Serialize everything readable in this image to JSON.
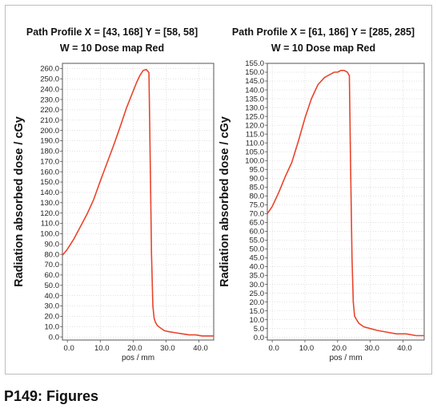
{
  "caption": "P149: Figures",
  "colors": {
    "line": "#e8452c",
    "grid": "#cfcfcf",
    "axis": "#555555",
    "frame": "#bdbdbd"
  },
  "chart_data": [
    {
      "type": "line",
      "title_line1": "Path Profile X = [43, 168]  Y = [58, 58]",
      "title_line2": "W = 10 Dose map Red",
      "xlabel": "pos / mm",
      "ylabel": "Radiation absorbed dose / cGy",
      "xlim": [
        -1.5,
        44.5
      ],
      "ylim": [
        -3,
        265
      ],
      "x_ticks": [
        0,
        10,
        20,
        30,
        40
      ],
      "x_tick_labels": [
        "0.0",
        "10.0",
        "20.0",
        "30.0",
        "40.0"
      ],
      "y_ticks": [
        0,
        10,
        20,
        30,
        40,
        50,
        60,
        70,
        80,
        90,
        100,
        110,
        120,
        130,
        140,
        150,
        160,
        170,
        180,
        190,
        200,
        210,
        220,
        230,
        240,
        250,
        260
      ],
      "y_tick_labels": [
        "0.0",
        "10.0",
        "20.0",
        "30.0",
        "40.0",
        "50.0",
        "60.0",
        "70.0",
        "80.0",
        "90.0",
        "100.0",
        "110.0",
        "120.0",
        "130.0",
        "140.0",
        "150.0",
        "160.0",
        "170.0",
        "180.0",
        "190.0",
        "200.0",
        "210.0",
        "220.0",
        "230.0",
        "240.0",
        "250.0",
        "260.0"
      ],
      "grid": true,
      "series": [
        {
          "x": [
            -1.5,
            0,
            2,
            4,
            6,
            8,
            10,
            12,
            14,
            16,
            18,
            20,
            21,
            22,
            23,
            24,
            24.8,
            25.2,
            25.6,
            26.0,
            26.4,
            26.8,
            27.4,
            28.2,
            29.5,
            31,
            33,
            35,
            37,
            39,
            41,
            44.5
          ],
          "y": [
            79,
            85,
            95,
            107,
            119,
            133,
            151,
            168,
            185,
            203,
            222,
            238,
            246,
            253,
            258,
            259,
            256,
            170,
            80,
            30,
            18,
            14,
            11,
            9,
            6,
            5,
            4,
            3,
            2,
            2,
            1,
            1
          ]
        }
      ]
    },
    {
      "type": "line",
      "title_line1": "Path Profile X = [61, 186]  Y = [285, 285]",
      "title_line2": "W = 10 Dose map Red",
      "xlabel": "pos / mm",
      "ylabel": "Radiation absorbed dose / cGy",
      "xlim": [
        -1.5,
        46.5
      ],
      "ylim": [
        -1.5,
        155
      ],
      "x_ticks": [
        0,
        10,
        20,
        30,
        40
      ],
      "x_tick_labels": [
        "0.0",
        "10.0",
        "20.0",
        "30.0",
        "40.0"
      ],
      "y_ticks": [
        0,
        5,
        10,
        15,
        20,
        25,
        30,
        35,
        40,
        45,
        50,
        55,
        60,
        65,
        70,
        75,
        80,
        85,
        90,
        95,
        100,
        105,
        110,
        115,
        120,
        125,
        130,
        135,
        140,
        145,
        150,
        155
      ],
      "y_tick_labels": [
        "0.0",
        "5.0",
        "10.0",
        "15.0",
        "20.0",
        "25.0",
        "30.0",
        "35.0",
        "40.0",
        "45.0",
        "50.0",
        "55.0",
        "60.0",
        "65.0",
        "70.0",
        "75.0",
        "80.0",
        "85.0",
        "90.0",
        "95.0",
        "100.0",
        "105.0",
        "110.0",
        "115.0",
        "120.0",
        "125.0",
        "130.0",
        "135.0",
        "140.0",
        "145.0",
        "150.0",
        "155.0"
      ],
      "grid": true,
      "series": [
        {
          "x": [
            -1.5,
            0,
            2,
            4,
            6,
            8,
            10,
            12,
            14,
            16,
            18,
            19,
            20,
            21,
            22,
            23,
            23.6,
            24.0,
            24.4,
            24.8,
            25.2,
            25.8,
            26.5,
            28,
            30,
            32,
            35,
            38,
            41,
            44,
            46.5
          ],
          "y": [
            70,
            74,
            82,
            91,
            99,
            111,
            124,
            135,
            143,
            147,
            149,
            150,
            150,
            151,
            151,
            150,
            148,
            95,
            45,
            20,
            12,
            10,
            8,
            6,
            5,
            4,
            3,
            2,
            2,
            1,
            1
          ]
        }
      ]
    }
  ]
}
